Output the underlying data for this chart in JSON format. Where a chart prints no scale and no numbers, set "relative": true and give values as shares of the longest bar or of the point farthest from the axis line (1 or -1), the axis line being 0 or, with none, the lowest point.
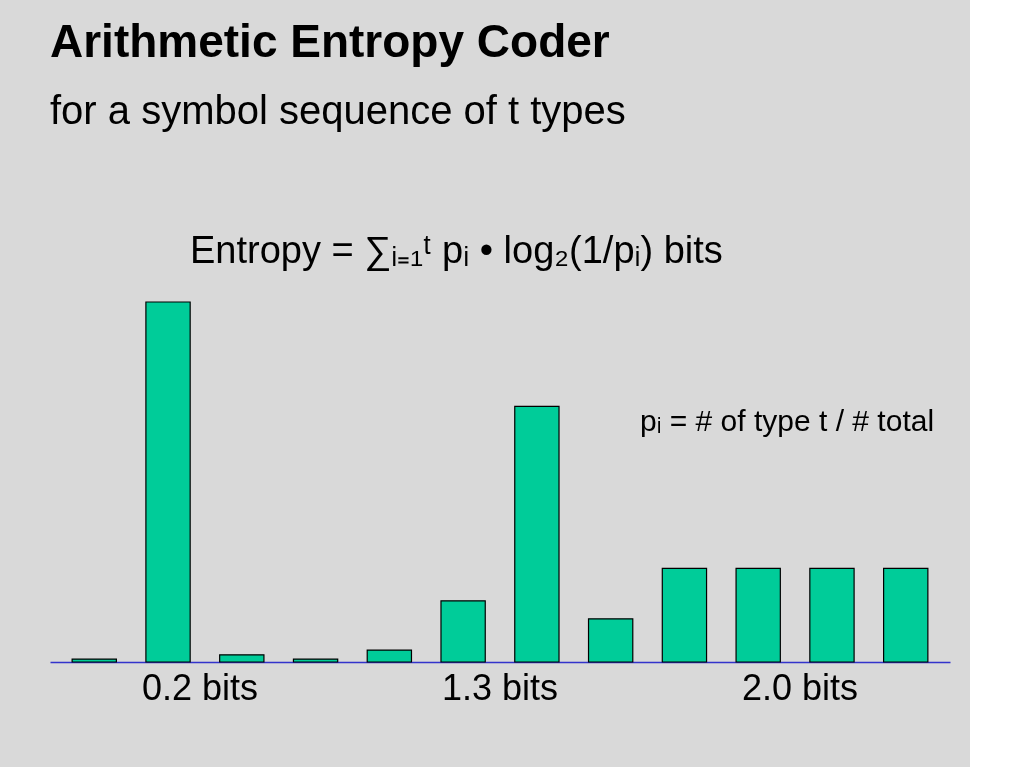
{
  "chart_data": {
    "type": "bar",
    "title": "Arithmetic Entropy Coder",
    "subtitle": "for a symbol sequence of t types",
    "relative": true,
    "categories": [
      null,
      null,
      null,
      null,
      null,
      null,
      null,
      null,
      null,
      null,
      null,
      null
    ],
    "series": [
      {
        "color": "#00cc99",
        "values": [
          0.008,
          1.0,
          0.02,
          0.008,
          0.033,
          0.17,
          0.71,
          0.12,
          0.26,
          0.26,
          0.26,
          0.26
        ]
      }
    ],
    "annotations": [
      "Entropy = ∑ᵢ₌₁ᵗ pᵢ • log₂(1/pᵢ) bits",
      "pᵢ = # of type t / # total",
      "0.2 bits",
      "1.3 bits",
      "2.0 bits"
    ]
  }
}
